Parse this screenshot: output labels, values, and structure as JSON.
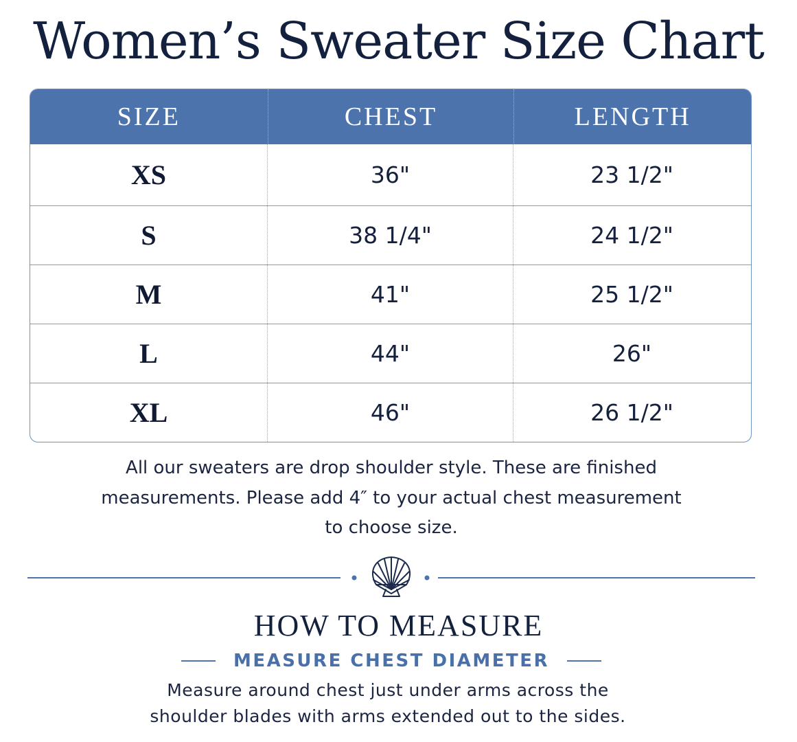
{
  "title": "Women’s Sweater Size Chart",
  "table": {
    "headers": [
      "SIZE",
      "CHEST",
      "LENGTH"
    ],
    "rows": [
      {
        "size": "XS",
        "chest": "36\"",
        "length": "23 1/2\""
      },
      {
        "size": "S",
        "chest": "38 1/4\"",
        "length": "24 1/2\""
      },
      {
        "size": "M",
        "chest": "41\"",
        "length": "25 1/2\""
      },
      {
        "size": "L",
        "chest": "44\"",
        "length": "26\""
      },
      {
        "size": "XL",
        "chest": "46\"",
        "length": "26 1/2\""
      }
    ]
  },
  "note": {
    "line1": "All our sweaters are drop shoulder style. These are finished",
    "line2": "measurements. Please add 4″ to your actual chest measurement",
    "line3": "to choose size."
  },
  "divider_icon": "seashell-icon",
  "colors": {
    "header_bg": "#4d73ad",
    "accent": "#4a70aa",
    "text": "#14213d"
  },
  "how_to": {
    "title": "HOW TO MEASURE",
    "subtitle": "MEASURE CHEST DIAMETER",
    "line1": "Measure around chest just under arms across the",
    "line2": "shoulder blades with arms extended out to the sides."
  }
}
